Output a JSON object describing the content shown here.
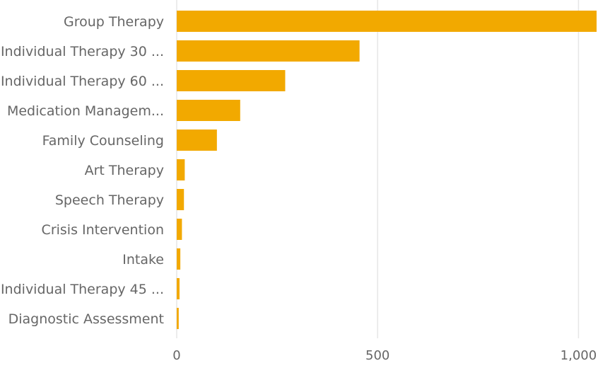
{
  "chart_data": {
    "type": "bar",
    "orientation": "horizontal",
    "categories": [
      "Group Therapy",
      "Individual Therapy 30 ...",
      "Individual Therapy 60 ...",
      "Medication Managem...",
      "Family Counseling",
      "Art Therapy",
      "Speech Therapy",
      "Crisis Intervention",
      "Intake",
      "Individual Therapy 45 ...",
      "Diagnostic Assessment"
    ],
    "values": [
      1045,
      455,
      270,
      158,
      100,
      20,
      18,
      13,
      9,
      7,
      5
    ],
    "xlim": [
      0,
      1045
    ],
    "xticks": [
      0,
      500,
      1000
    ],
    "xtick_labels": [
      "0",
      "500",
      "1,000"
    ],
    "grid": true,
    "legend": "none",
    "bar_color": "#F2A900"
  }
}
